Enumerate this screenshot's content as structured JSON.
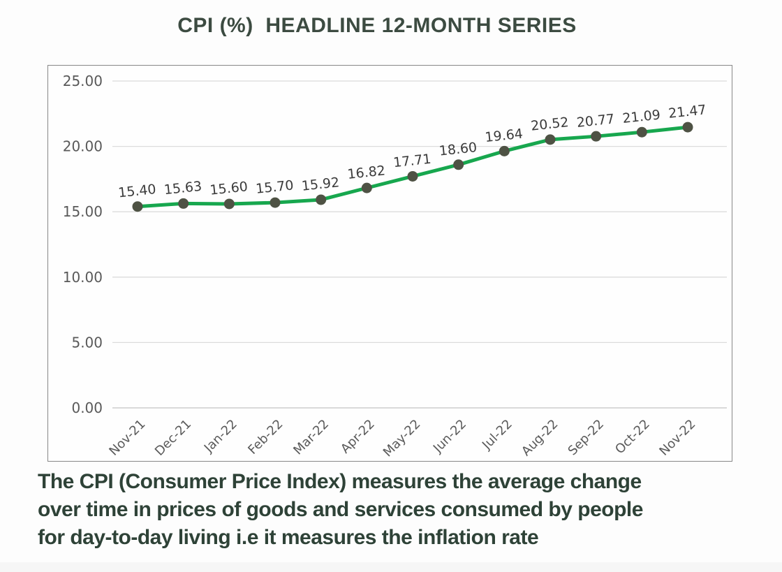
{
  "chart_data": {
    "type": "line",
    "title": "CPI (%)  HEADLINE 12-MONTH SERIES",
    "categories": [
      "Nov-21",
      "Dec-21",
      "Jan-22",
      "Feb-22",
      "Mar-22",
      "Apr-22",
      "May-22",
      "Jun-22",
      "Jul-22",
      "Aug-22",
      "Sep-22",
      "Oct-22",
      "Nov-22"
    ],
    "values": [
      15.4,
      15.63,
      15.6,
      15.7,
      15.92,
      16.82,
      17.71,
      18.6,
      19.64,
      20.52,
      20.77,
      21.09,
      21.47
    ],
    "data_labels": [
      "15.40",
      "15.63",
      "15.60",
      "15.70",
      "15.92",
      "16.82",
      "17.71",
      "18.60",
      "19.64",
      "20.52",
      "20.77",
      "21.09",
      "21.47"
    ],
    "xlabel": "",
    "ylabel": "",
    "ylim": [
      0,
      25
    ],
    "y_tick_values": [
      0,
      5,
      10,
      15,
      20,
      25
    ],
    "y_ticks": [
      "0.00",
      "5.00",
      "10.00",
      "15.00",
      "20.00",
      "25.00"
    ],
    "grid": true,
    "legend_position": "none",
    "line_color": "#17a74e",
    "marker_color": "#4e5244",
    "gridline_color": "#dcdcdc",
    "axis_line_color": "#c4c4c4",
    "axis_text_color": "#595959",
    "label_text_color": "#3b3b3b"
  },
  "footer": {
    "lines": [
      "The CPI (Consumer Price Index) measures the average change",
      "over time in prices of goods and services consumed by people",
      "for day-to-day living i.e it measures the inflation rate"
    ]
  }
}
